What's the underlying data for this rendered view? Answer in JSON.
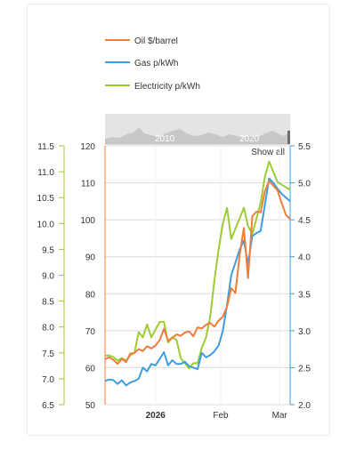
{
  "chart_data": {
    "type": "line",
    "title": "",
    "legend_position": "top",
    "legend": [
      {
        "name": "Oil $/barrel",
        "color": "#ee7d3b",
        "axis": "left-inner"
      },
      {
        "name": "Gas p/kWh",
        "color": "#3d9de0",
        "axis": "right"
      },
      {
        "name": "Electricity p/kWh",
        "color": "#9ccc33",
        "axis": "left-outer"
      }
    ],
    "navigator": {
      "labels": [
        "2010",
        "2020"
      ]
    },
    "show_all_label": "Show all",
    "x_ticks": [
      {
        "label": "2026",
        "date": "2026-01-01",
        "bold": true
      },
      {
        "label": "Feb",
        "date": "2026-02-01",
        "bold": false
      },
      {
        "label": "Mar",
        "date": "2026-03-01",
        "bold": false
      }
    ],
    "x_range": [
      "2025-12-08",
      "2026-03-06"
    ],
    "axes": {
      "oil": {
        "min": 50,
        "max": 120,
        "ticks": [
          "50",
          "60",
          "70",
          "80",
          "90",
          "100",
          "110",
          "120"
        ],
        "color": "#ee7d3b"
      },
      "electricity": {
        "min": 6.5,
        "max": 11.5,
        "ticks": [
          "6.5",
          "7.0",
          "7.5",
          "8.0",
          "8.5",
          "9.0",
          "9.5",
          "10.0",
          "10.5",
          "11.0",
          "11.5"
        ],
        "color": "#9ccc33"
      },
      "gas": {
        "min": 2.0,
        "max": 5.5,
        "ticks": [
          "2.0",
          "2.5",
          "3.0",
          "3.5",
          "4.0",
          "4.5",
          "5.0",
          "5.5"
        ],
        "color": "#3d9de0"
      }
    },
    "grid": true,
    "series": [
      {
        "name": "Oil $/barrel",
        "axis": "oil",
        "dates": [
          "2025-12-08",
          "2025-12-10",
          "2025-12-12",
          "2025-12-14",
          "2025-12-16",
          "2025-12-18",
          "2025-12-20",
          "2025-12-22",
          "2025-12-24",
          "2025-12-26",
          "2025-12-28",
          "2025-12-30",
          "2026-01-01",
          "2026-01-03",
          "2026-01-05",
          "2026-01-07",
          "2026-01-09",
          "2026-01-11",
          "2026-01-13",
          "2026-01-15",
          "2026-01-17",
          "2026-01-19",
          "2026-01-21",
          "2026-01-23",
          "2026-01-25",
          "2026-01-27",
          "2026-01-29",
          "2026-01-31",
          "2026-02-02",
          "2026-02-04",
          "2026-02-06",
          "2026-02-08",
          "2026-02-10",
          "2026-02-12",
          "2026-02-14",
          "2026-02-16",
          "2026-02-18",
          "2026-02-20",
          "2026-02-22",
          "2026-02-24",
          "2026-02-26",
          "2026-02-28",
          "2026-03-02",
          "2026-03-04",
          "2026-03-06"
        ],
        "values": [
          62.3,
          62.8,
          62.1,
          61.0,
          62.4,
          61.5,
          63.8,
          64.0,
          65.0,
          64.5,
          65.8,
          65.2,
          66.0,
          67.5,
          70.5,
          67.3,
          68.1,
          69.0,
          68.6,
          69.5,
          69.8,
          68.5,
          70.9,
          70.6,
          71.6,
          72.1,
          71.1,
          72.7,
          73.8,
          76.5,
          81.5,
          80.2,
          90.5,
          97.8,
          84.2,
          101.0,
          102.2,
          102.0,
          107.7,
          110.5,
          109.2,
          108.0,
          104.5,
          101.3,
          100.2
        ]
      },
      {
        "name": "Gas p/kWh",
        "axis": "gas",
        "dates": [
          "2025-12-08",
          "2025-12-10",
          "2025-12-12",
          "2025-12-14",
          "2025-12-16",
          "2025-12-18",
          "2025-12-20",
          "2025-12-22",
          "2025-12-24",
          "2025-12-26",
          "2025-12-28",
          "2025-12-30",
          "2026-01-01",
          "2026-01-03",
          "2026-01-05",
          "2026-01-07",
          "2026-01-09",
          "2026-01-11",
          "2026-01-13",
          "2026-01-15",
          "2026-01-17",
          "2026-01-19",
          "2026-01-21",
          "2026-01-23",
          "2026-01-25",
          "2026-01-27",
          "2026-01-29",
          "2026-01-31",
          "2026-02-02",
          "2026-02-04",
          "2026-02-06",
          "2026-02-08",
          "2026-02-10",
          "2026-02-12",
          "2026-02-14",
          "2026-02-16",
          "2026-02-18",
          "2026-02-20",
          "2026-02-22",
          "2026-02-24",
          "2026-02-26",
          "2026-02-28",
          "2026-03-02",
          "2026-03-04",
          "2026-03-06"
        ],
        "values": [
          2.32,
          2.34,
          2.33,
          2.28,
          2.33,
          2.26,
          2.3,
          2.32,
          2.35,
          2.5,
          2.45,
          2.55,
          2.53,
          2.62,
          2.71,
          2.53,
          2.6,
          2.55,
          2.55,
          2.58,
          2.52,
          2.5,
          2.48,
          2.7,
          2.64,
          2.67,
          2.72,
          2.8,
          3.0,
          3.35,
          3.75,
          3.92,
          4.1,
          4.22,
          3.9,
          4.28,
          4.32,
          4.35,
          4.7,
          5.06,
          5.0,
          4.92,
          4.85,
          4.8,
          4.75
        ]
      },
      {
        "name": "Electricity p/kWh",
        "axis": "electricity",
        "dates": [
          "2025-12-08",
          "2025-12-10",
          "2025-12-12",
          "2025-12-14",
          "2025-12-16",
          "2025-12-18",
          "2025-12-20",
          "2025-12-22",
          "2025-12-24",
          "2025-12-26",
          "2025-12-28",
          "2025-12-30",
          "2026-01-01",
          "2026-01-03",
          "2026-01-05",
          "2026-01-07",
          "2026-01-09",
          "2026-01-11",
          "2026-01-13",
          "2026-01-15",
          "2026-01-17",
          "2026-01-19",
          "2026-01-21",
          "2026-01-23",
          "2026-01-25",
          "2026-01-27",
          "2026-01-29",
          "2026-01-31",
          "2026-02-02",
          "2026-02-04",
          "2026-02-06",
          "2026-02-08",
          "2026-02-10",
          "2026-02-12",
          "2026-02-14",
          "2026-02-16",
          "2026-02-18",
          "2026-02-20",
          "2026-02-22",
          "2026-02-24",
          "2026-02-26",
          "2026-02-28",
          "2026-03-02",
          "2026-03-04",
          "2026-03-06"
        ],
        "values": [
          7.45,
          7.45,
          7.42,
          7.35,
          7.4,
          7.35,
          7.45,
          7.5,
          7.9,
          7.8,
          8.05,
          7.8,
          7.95,
          8.1,
          8.1,
          7.7,
          7.8,
          7.75,
          7.4,
          7.3,
          7.2,
          7.3,
          7.3,
          7.6,
          7.8,
          8.2,
          8.9,
          9.5,
          10.0,
          10.3,
          9.7,
          9.9,
          10.1,
          10.3,
          9.95,
          9.8,
          10.1,
          10.4,
          10.9,
          11.2,
          11.0,
          10.8,
          10.75,
          10.7,
          10.65
        ]
      }
    ]
  }
}
